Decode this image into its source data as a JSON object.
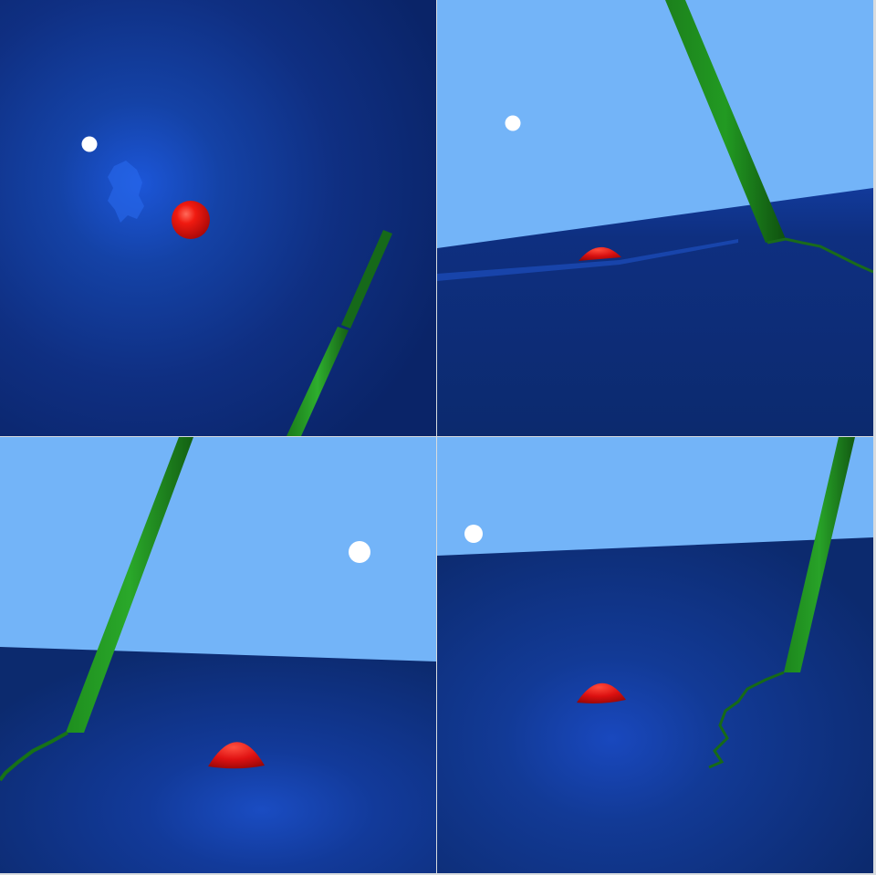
{
  "scene": {
    "viewports": [
      {
        "id": "top-left",
        "view": "top-down"
      },
      {
        "id": "top-right",
        "view": "side-low"
      },
      {
        "id": "bottom-left",
        "view": "side-angle"
      },
      {
        "id": "bottom-right",
        "view": "side-front"
      }
    ],
    "objects": [
      "red-ball",
      "light-source",
      "green-rod",
      "water-surface"
    ],
    "colors": {
      "sky": "#73b4f8",
      "water_deep": "#0c2a6e",
      "water_glow": "#1748b8",
      "ball": "#e01010",
      "rod": "#1e8c1e",
      "light": "#ffffff"
    }
  }
}
